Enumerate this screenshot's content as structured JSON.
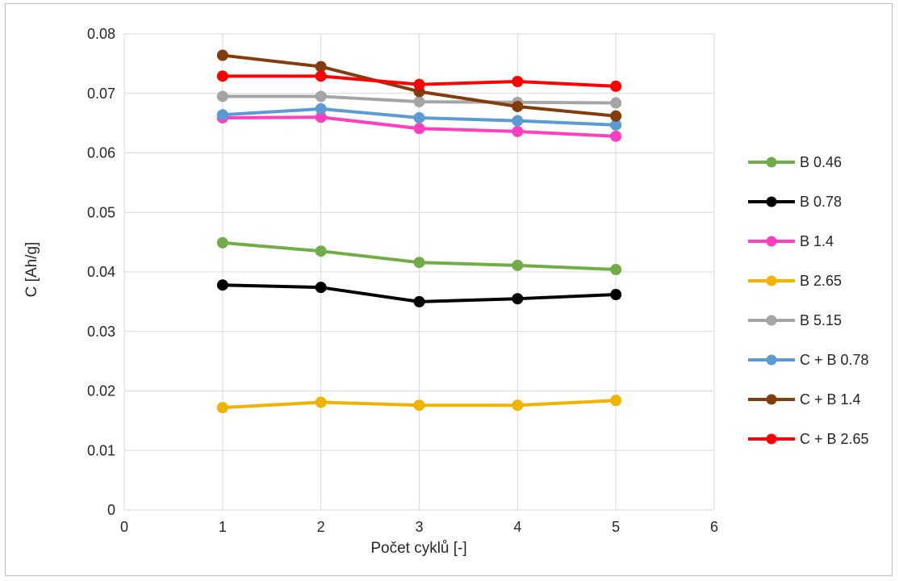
{
  "chart_data": {
    "type": "line",
    "title": "",
    "xlabel": "Počet cyklů [-]",
    "ylabel": "C [Ah/g]",
    "xlim": [
      0,
      6
    ],
    "ylim": [
      0,
      0.08
    ],
    "xticks": [
      "0",
      "1",
      "2",
      "3",
      "4",
      "5",
      "6"
    ],
    "yticks": [
      "0",
      "0.01",
      "0.02",
      "0.03",
      "0.04",
      "0.05",
      "0.06",
      "0.07",
      "0.08"
    ],
    "grid": "vertical and horizontal major gridlines",
    "legend_position": "right",
    "x": [
      1,
      2,
      3,
      4,
      5
    ],
    "series": [
      {
        "name": "B 0.46",
        "color": "#70ad47",
        "values": [
          0.0449,
          0.0435,
          0.0416,
          0.0411,
          0.0404
        ]
      },
      {
        "name": "B 0.78",
        "color": "#000000",
        "values": [
          0.0378,
          0.0374,
          0.035,
          0.0355,
          0.0362
        ]
      },
      {
        "name": "B 1.4",
        "color": "#ff3fbf",
        "values": [
          0.0659,
          0.066,
          0.0641,
          0.0636,
          0.0628
        ]
      },
      {
        "name": "B 2.65",
        "color": "#f0b400",
        "values": [
          0.0172,
          0.0181,
          0.0176,
          0.0176,
          0.0184
        ]
      },
      {
        "name": "B 5.15",
        "color": "#a5a5a5",
        "values": [
          0.0695,
          0.0695,
          0.0686,
          0.0685,
          0.0684
        ]
      },
      {
        "name": "C + B 0.78",
        "color": "#5b9bd5",
        "values": [
          0.0664,
          0.0674,
          0.0659,
          0.0654,
          0.0647
        ]
      },
      {
        "name": "C + B 1.4",
        "color": "#843c0c",
        "values": [
          0.0764,
          0.0745,
          0.0703,
          0.0678,
          0.0662
        ]
      },
      {
        "name": "C + B 2.65",
        "color": "#ff0000",
        "values": [
          0.0729,
          0.0729,
          0.0715,
          0.072,
          0.0712
        ]
      }
    ]
  }
}
